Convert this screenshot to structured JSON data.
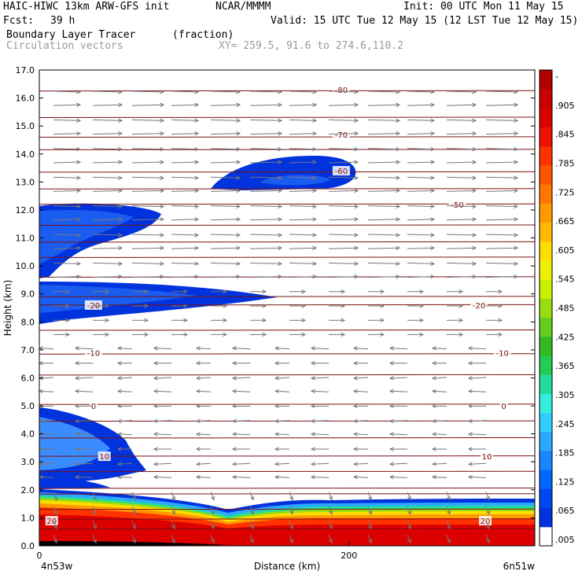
{
  "header": {
    "model": "HAIC-HIWC 13km ARW-GFS init",
    "org": "NCAR/MMMM",
    "init": "Init: 00 UTC Mon 11 May 15",
    "fcst_label": "Fcst:",
    "fcst_value": "39 h",
    "valid": "Valid: 15 UTC Tue 12 May 15 (12 LST Tue 12 May 15)",
    "field": "Boundary Layer Tracer",
    "units": "(fraction)",
    "vectors": "Circulation vectors",
    "xy": "XY= 259.5, 91.6 to 274.6,110.2"
  },
  "colors": {
    "isotherm": "#7a1010",
    "vector": "#777777",
    "colorbar": [
      "#ffffff",
      "#0033dd",
      "#0047ee",
      "#0066ff",
      "#1a85ff",
      "#2ea8ff",
      "#33ccff",
      "#33eedd",
      "#22dd99",
      "#22cc55",
      "#33bb22",
      "#66cc22",
      "#99dd11",
      "#ccee00",
      "#eeee00",
      "#ffdd00",
      "#ffbb00",
      "#ff9900",
      "#ff7700",
      "#ff5500",
      "#ff3300",
      "#ee1100",
      "#dd0000",
      "#cc0000",
      "#b30000"
    ]
  },
  "chart_data": {
    "type": "heatmap",
    "title": "Boundary Layer Tracer",
    "xlabel": "Distance (km)",
    "ylabel": "Height (km)",
    "xlim": [
      0,
      320
    ],
    "ylim": [
      0,
      17
    ],
    "x_ticks": [
      "0",
      "200"
    ],
    "y_ticks": [
      "0.0",
      "1.0",
      "2.0",
      "3.0",
      "4.0",
      "5.0",
      "6.0",
      "7.0",
      "8.0",
      "9.0",
      "10.0",
      "11.0",
      "12.0",
      "13.0",
      "14.0",
      "15.0",
      "16.0",
      "17.0"
    ],
    "endpoints": {
      "left": "4n53w",
      "right": "6n51w"
    },
    "colorbar_labels": [
      ".005",
      ".065",
      ".125",
      ".185",
      ".245",
      ".305",
      ".365",
      ".425",
      ".485",
      ".545",
      ".605",
      ".665",
      ".725",
      ".785",
      ".845",
      ".905",
      "-"
    ],
    "isotherm_labels": [
      {
        "label": "-80",
        "x": 195,
        "y": 16.3
      },
      {
        "label": "-70",
        "x": 195,
        "y": 14.7
      },
      {
        "label": "-60",
        "x": 195,
        "y": 13.4
      },
      {
        "label": "-50",
        "x": 270,
        "y": 12.2
      },
      {
        "label": "-20",
        "x": 35,
        "y": 8.6
      },
      {
        "label": "-20",
        "x": 284,
        "y": 8.6
      },
      {
        "label": "-10",
        "x": 35,
        "y": 6.9
      },
      {
        "label": "-10",
        "x": 299,
        "y": 6.9
      },
      {
        "label": "0",
        "x": 35,
        "y": 5.0
      },
      {
        "label": "0",
        "x": 300,
        "y": 5.0
      },
      {
        "label": "10",
        "x": 42,
        "y": 3.2
      },
      {
        "label": "10",
        "x": 289,
        "y": 3.2
      },
      {
        "label": "20",
        "x": 8,
        "y": 0.9
      },
      {
        "label": "20",
        "x": 288,
        "y": 0.9
      }
    ]
  }
}
